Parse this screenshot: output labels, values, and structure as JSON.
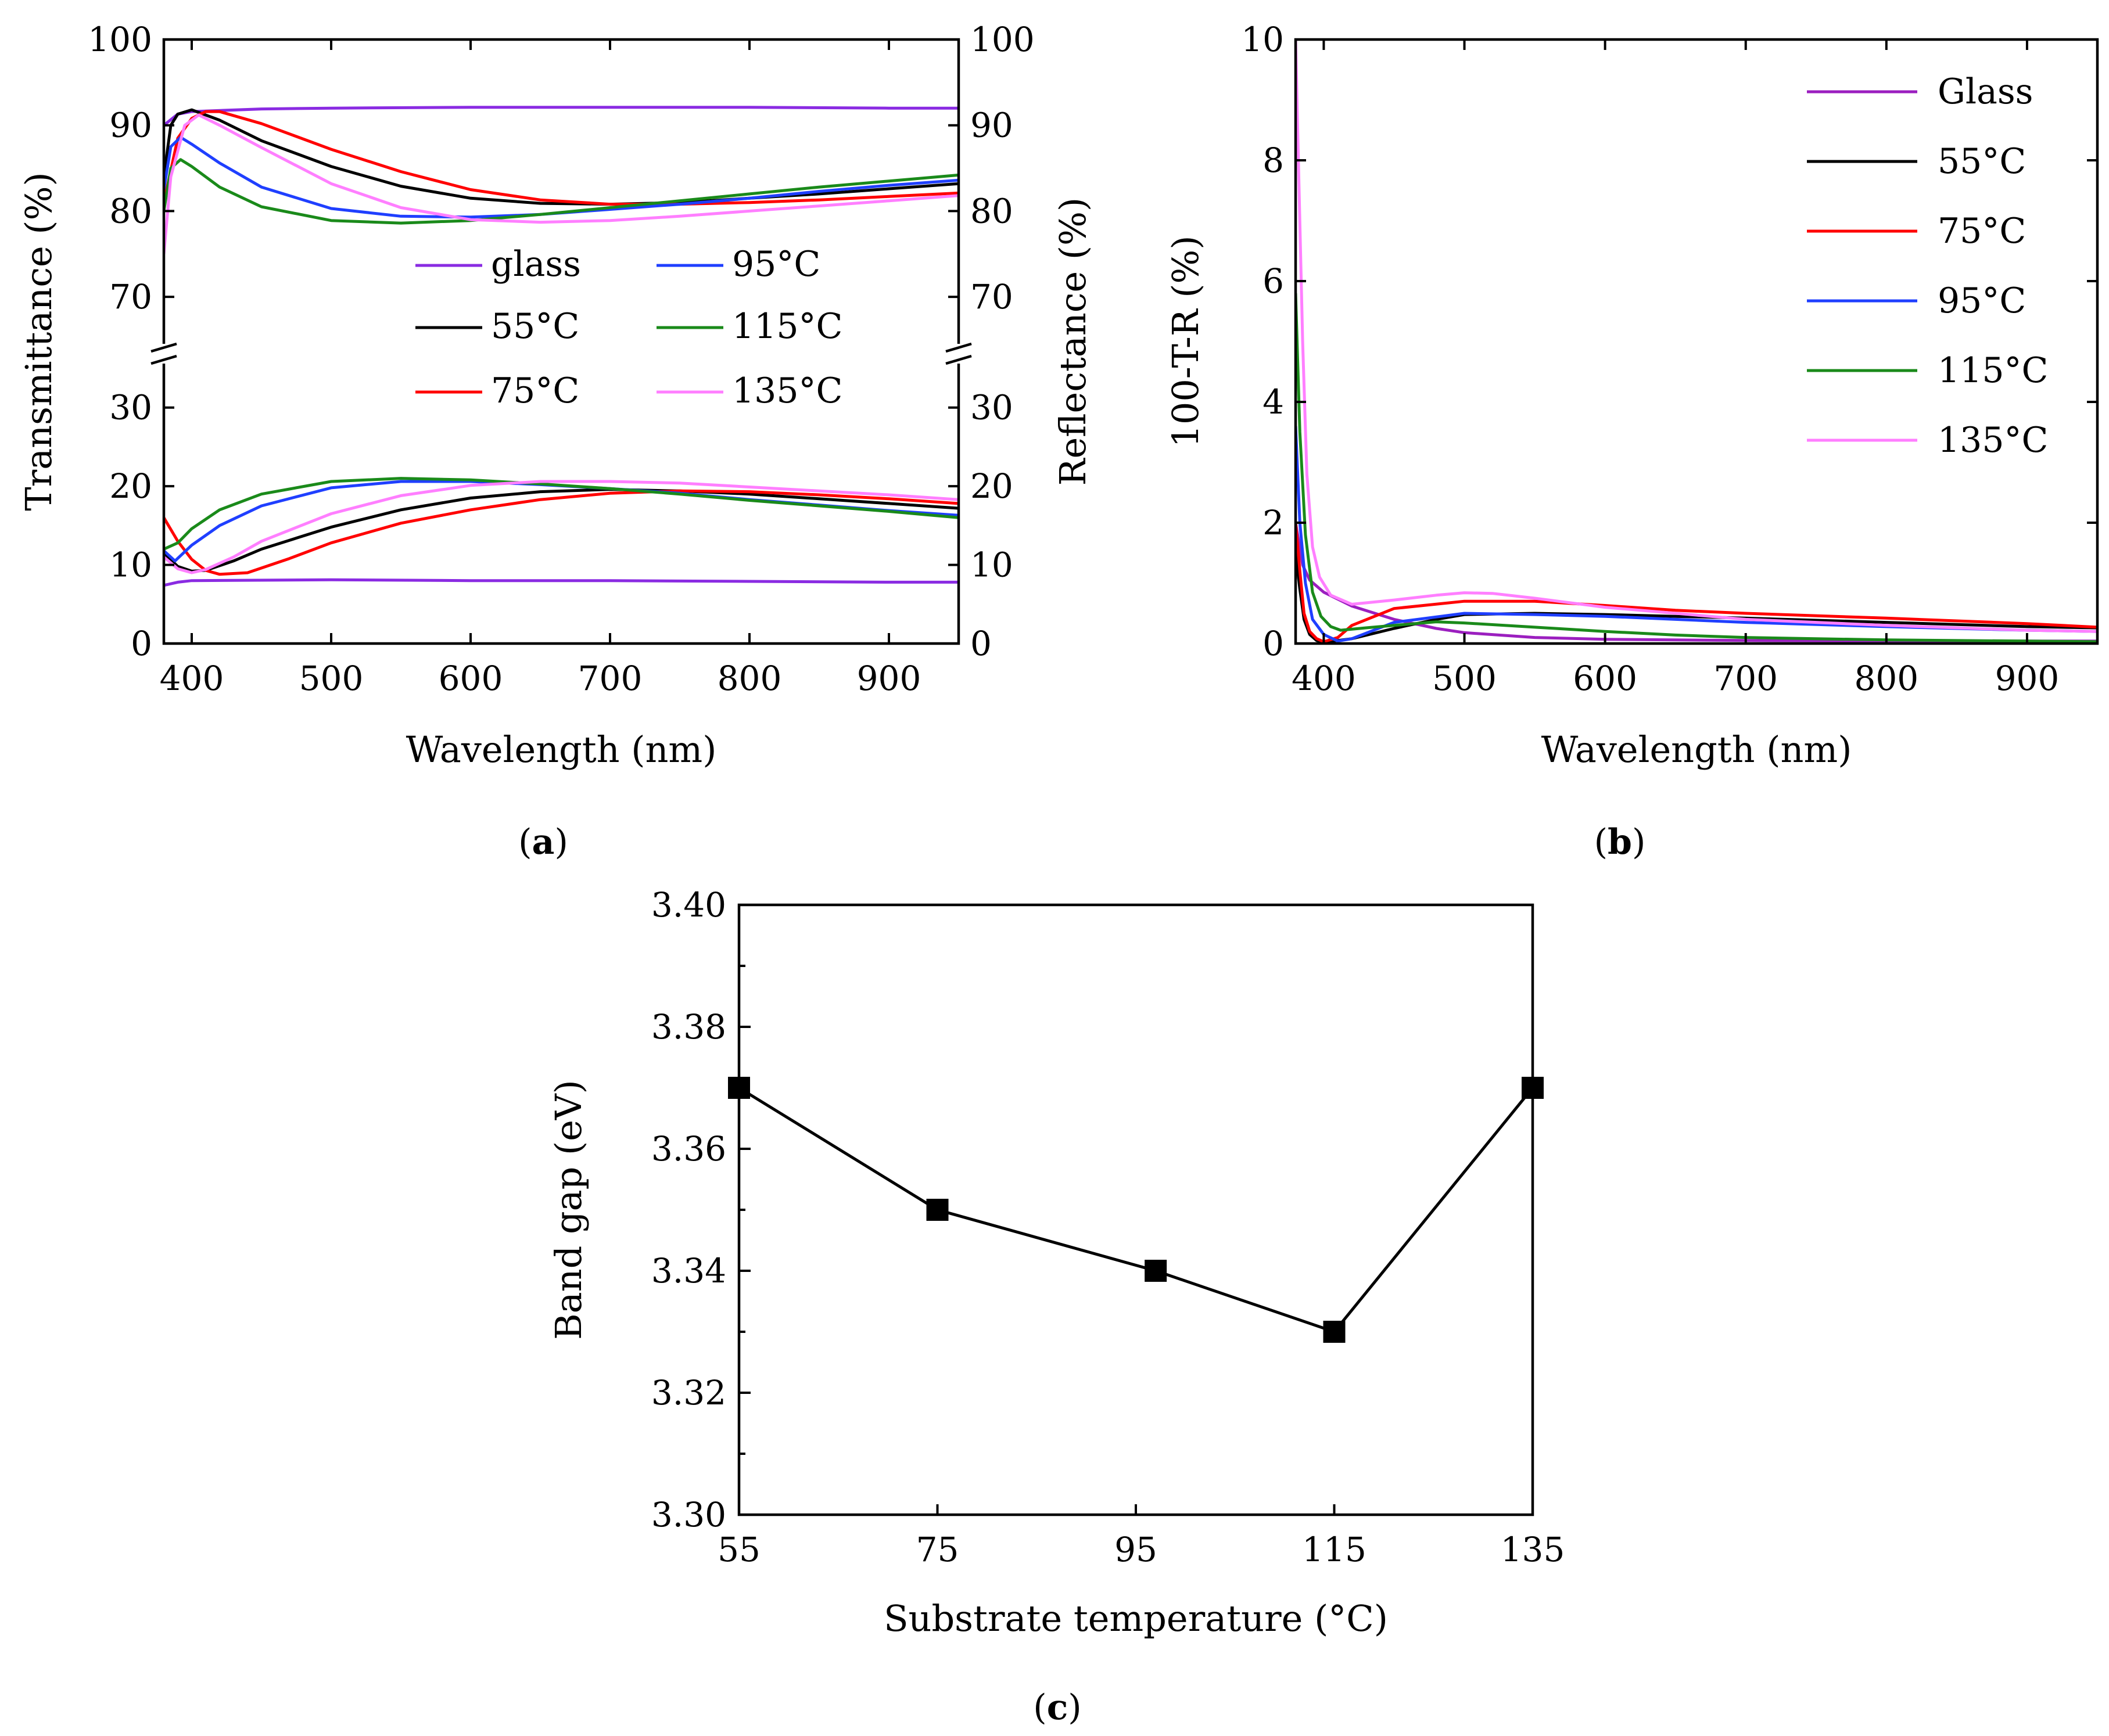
{
  "chart_data": [
    {
      "id": "a",
      "panel_label": "a",
      "type": "line",
      "xlabel": "Wavelength (nm)",
      "ylabel": "Transmittance (%)",
      "ylabel_right": "Reflectance (%)",
      "xlim": [
        380,
        950
      ],
      "xticks": [
        "400",
        "500",
        "600",
        "700",
        "800",
        "900"
      ],
      "ylim_lower": [
        0,
        35
      ],
      "ylim_upper": [
        65,
        100
      ],
      "yticks_lower": [
        "0",
        "10",
        "20",
        "30"
      ],
      "yticks_upper": [
        "70",
        "80",
        "90",
        "100"
      ],
      "axis_break": true,
      "legend_position": "center-right",
      "series": [
        {
          "name": "glass",
          "color": "#8a2be2",
          "transmittance": {
            "x": [
              380,
              390,
              400,
              450,
              500,
              600,
              700,
              800,
              900,
              950
            ],
            "y": [
              90.0,
              91.3,
              91.6,
              91.9,
              92.0,
              92.1,
              92.1,
              92.1,
              92.0,
              92.0
            ]
          },
          "reflectance": {
            "x": [
              380,
              390,
              400,
              500,
              600,
              700,
              800,
              900,
              950
            ],
            "y": [
              7.4,
              7.8,
              8.0,
              8.1,
              8.0,
              8.0,
              7.9,
              7.8,
              7.8
            ]
          }
        },
        {
          "name": "55°C",
          "color": "#000000",
          "transmittance": {
            "x": [
              380,
              385,
              390,
              400,
              420,
              450,
              500,
              550,
              600,
              650,
              700,
              750,
              800,
              850,
              900,
              950
            ],
            "y": [
              84.0,
              90.0,
              91.3,
              91.8,
              90.6,
              88.2,
              85.2,
              82.9,
              81.5,
              80.9,
              80.8,
              81.0,
              81.5,
              82.0,
              82.6,
              83.2
            ]
          },
          "reflectance": {
            "x": [
              380,
              390,
              400,
              410,
              430,
              450,
              500,
              550,
              600,
              650,
              700,
              750,
              800,
              850,
              900,
              950
            ],
            "y": [
              11.5,
              9.8,
              9.2,
              9.3,
              10.5,
              12.0,
              14.8,
              17.0,
              18.5,
              19.3,
              19.6,
              19.4,
              19.0,
              18.4,
              17.8,
              17.2
            ]
          }
        },
        {
          "name": "75°C",
          "color": "#ff0000",
          "transmittance": {
            "x": [
              380,
              390,
              400,
              410,
              420,
              450,
              500,
              550,
              600,
              650,
              700,
              750,
              800,
              850,
              900,
              950
            ],
            "y": [
              81.0,
              88.5,
              90.8,
              91.6,
              91.6,
              90.2,
              87.2,
              84.6,
              82.5,
              81.3,
              80.8,
              80.8,
              81.0,
              81.3,
              81.7,
              82.1
            ]
          },
          "reflectance": {
            "x": [
              380,
              390,
              400,
              410,
              420,
              440,
              470,
              500,
              550,
              600,
              650,
              700,
              750,
              800,
              850,
              900,
              950
            ],
            "y": [
              16.0,
              13.0,
              10.7,
              9.3,
              8.8,
              9.0,
              10.8,
              12.8,
              15.3,
              17.0,
              18.3,
              19.1,
              19.4,
              19.3,
              18.9,
              18.4,
              17.8
            ]
          }
        },
        {
          "name": "95°C",
          "color": "#1f3fff",
          "transmittance": {
            "x": [
              380,
              385,
              392,
              400,
              420,
              450,
              500,
              550,
              600,
              650,
              700,
              750,
              800,
              850,
              900,
              950
            ],
            "y": [
              82.5,
              87.5,
              88.6,
              87.8,
              85.6,
              82.8,
              80.3,
              79.4,
              79.3,
              79.6,
              80.2,
              80.8,
              81.5,
              82.3,
              83.0,
              83.6
            ]
          },
          "reflectance": {
            "x": [
              380,
              388,
              400,
              420,
              450,
              500,
              550,
              600,
              650,
              700,
              750,
              800,
              850,
              900,
              950
            ],
            "y": [
              11.8,
              10.5,
              12.5,
              15.0,
              17.5,
              19.8,
              20.6,
              20.6,
              20.2,
              19.7,
              19.1,
              18.3,
              17.6,
              16.9,
              16.3
            ]
          }
        },
        {
          "name": "115°C",
          "color": "#1a8a1a",
          "transmittance": {
            "x": [
              380,
              385,
              392,
              400,
              420,
              450,
              500,
              550,
              600,
              650,
              700,
              750,
              800,
              850,
              900,
              950
            ],
            "y": [
              80.0,
              85.0,
              86.0,
              85.2,
              82.8,
              80.5,
              78.9,
              78.6,
              78.9,
              79.6,
              80.4,
              81.2,
              82.0,
              82.8,
              83.5,
              84.2
            ]
          },
          "reflectance": {
            "x": [
              380,
              390,
              400,
              420,
              450,
              500,
              550,
              600,
              650,
              700,
              750,
              800,
              850,
              900,
              950
            ],
            "y": [
              12.0,
              12.8,
              14.6,
              17.0,
              19.0,
              20.6,
              21.0,
              20.8,
              20.3,
              19.7,
              19.0,
              18.2,
              17.5,
              16.8,
              16.0
            ]
          }
        },
        {
          "name": "135°C",
          "color": "#ff7fff",
          "transmittance": {
            "x": [
              380,
              385,
              395,
              405,
              420,
              450,
              500,
              550,
              600,
              650,
              700,
              750,
              800,
              850,
              900,
              950
            ],
            "y": [
              75.0,
              84.0,
              90.0,
              91.2,
              90.0,
              87.4,
              83.2,
              80.4,
              79.0,
              78.7,
              78.9,
              79.4,
              80.0,
              80.6,
              81.2,
              81.8
            ]
          },
          "reflectance": {
            "x": [
              380,
              390,
              400,
              410,
              430,
              450,
              500,
              550,
              600,
              650,
              700,
              750,
              800,
              850,
              900,
              950
            ],
            "y": [
              11.0,
              9.5,
              9.0,
              9.4,
              11.0,
              13.0,
              16.5,
              18.8,
              20.1,
              20.6,
              20.6,
              20.4,
              19.9,
              19.4,
              18.9,
              18.3
            ]
          }
        }
      ]
    },
    {
      "id": "b",
      "panel_label": "b",
      "type": "line",
      "xlabel": "Wavelength (nm)",
      "ylabel": "100-T-R (%)",
      "xlim": [
        380,
        950
      ],
      "xticks": [
        "400",
        "500",
        "600",
        "700",
        "800",
        "900"
      ],
      "ylim": [
        0,
        10
      ],
      "yticks": [
        "0",
        "2",
        "4",
        "6",
        "8",
        "10"
      ],
      "legend_position": "top-right",
      "series": [
        {
          "name": "Glass",
          "color": "#9b1fbf",
          "x": [
            380,
            385,
            390,
            400,
            420,
            450,
            480,
            500,
            550,
            600,
            700,
            800,
            900,
            950
          ],
          "y": [
            2.0,
            1.3,
            1.05,
            0.85,
            0.62,
            0.4,
            0.25,
            0.18,
            0.1,
            0.07,
            0.05,
            0.04,
            0.04,
            0.04
          ]
        },
        {
          "name": "55°C",
          "color": "#000000",
          "x": [
            380,
            383,
            386,
            390,
            395,
            400,
            420,
            450,
            480,
            500,
            550,
            600,
            650,
            700,
            800,
            900,
            950
          ],
          "y": [
            1.5,
            0.9,
            0.4,
            0.15,
            0.05,
            0.02,
            0.08,
            0.25,
            0.4,
            0.48,
            0.5,
            0.48,
            0.45,
            0.42,
            0.35,
            0.28,
            0.26
          ]
        },
        {
          "name": "75°C",
          "color": "#ff0000",
          "x": [
            380,
            383,
            386,
            390,
            395,
            400,
            410,
            420,
            450,
            500,
            550,
            600,
            650,
            700,
            800,
            900,
            950
          ],
          "y": [
            2.0,
            1.2,
            0.5,
            0.2,
            0.08,
            0.03,
            0.1,
            0.3,
            0.58,
            0.7,
            0.7,
            0.63,
            0.55,
            0.5,
            0.42,
            0.33,
            0.27
          ]
        },
        {
          "name": "95°C",
          "color": "#1f3fff",
          "x": [
            380,
            383,
            387,
            392,
            400,
            410,
            420,
            450,
            500,
            550,
            600,
            650,
            700,
            800,
            900,
            950
          ],
          "y": [
            3.6,
            2.0,
            1.0,
            0.4,
            0.15,
            0.04,
            0.08,
            0.35,
            0.5,
            0.48,
            0.45,
            0.4,
            0.35,
            0.28,
            0.22,
            0.2
          ]
        },
        {
          "name": "115°C",
          "color": "#1a8a1a",
          "x": [
            380,
            383,
            387,
            392,
            398,
            405,
            412,
            430,
            450,
            480,
            500,
            550,
            600,
            650,
            700,
            800,
            900,
            950
          ],
          "y": [
            5.8,
            3.5,
            1.8,
            0.85,
            0.45,
            0.28,
            0.22,
            0.26,
            0.3,
            0.36,
            0.34,
            0.27,
            0.2,
            0.14,
            0.1,
            0.06,
            0.04,
            0.03
          ]
        },
        {
          "name": "135°C",
          "color": "#ff7fff",
          "x": [
            380,
            382,
            385,
            388,
            392,
            397,
            405,
            420,
            450,
            480,
            500,
            520,
            550,
            600,
            700,
            800,
            900,
            950
          ],
          "y": [
            10.0,
            8.0,
            5.0,
            2.8,
            1.6,
            1.1,
            0.8,
            0.65,
            0.72,
            0.8,
            0.84,
            0.83,
            0.75,
            0.6,
            0.4,
            0.3,
            0.22,
            0.2
          ]
        }
      ]
    },
    {
      "id": "c",
      "panel_label": "c",
      "type": "scatter",
      "xlabel": "Substrate temperature (°C)",
      "ylabel": "Band gap (eV)",
      "xlim": [
        55,
        135
      ],
      "xticks": [
        "55",
        "75",
        "95",
        "115",
        "135"
      ],
      "ylim": [
        3.3,
        3.4
      ],
      "yticks": [
        "3.30",
        "3.32",
        "3.34",
        "3.36",
        "3.38",
        "3.40"
      ],
      "series": [
        {
          "name": "Band gap",
          "color": "#000000",
          "marker": "square",
          "connected": true,
          "x": [
            55,
            75,
            97,
            115,
            135
          ],
          "y": [
            3.37,
            3.35,
            3.34,
            3.33,
            3.37
          ]
        }
      ]
    }
  ]
}
